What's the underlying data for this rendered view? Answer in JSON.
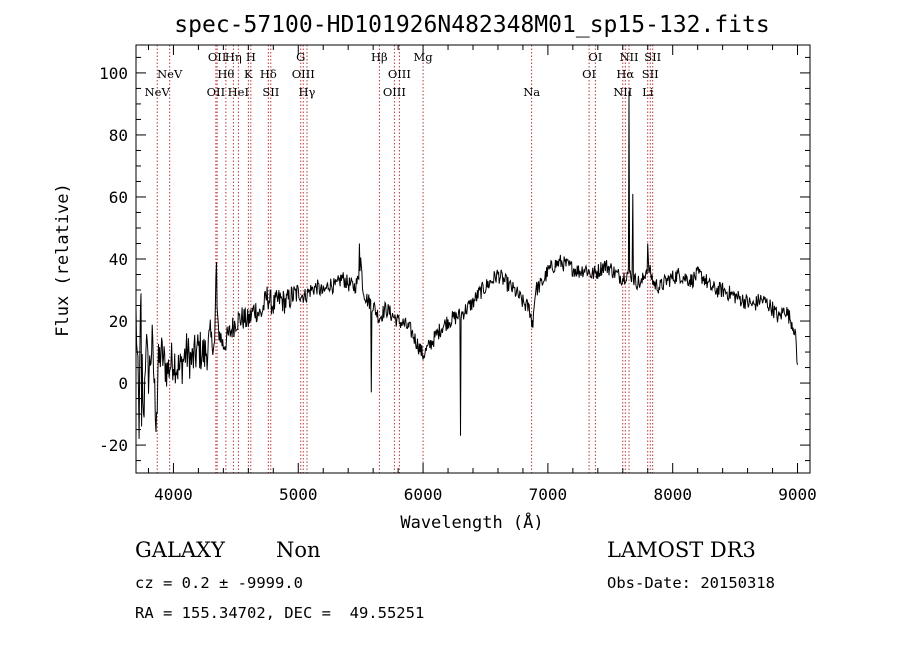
{
  "chart_data": {
    "type": "line",
    "title": "spec-57100-HD101926N482348M01_sp15-132.fits",
    "xlabel": "Wavelength (Å)",
    "ylabel": "Flux (relative)",
    "xlim": [
      3700,
      9100
    ],
    "ylim": [
      -29,
      109
    ],
    "xticks": [
      4000,
      5000,
      6000,
      7000,
      8000,
      9000
    ],
    "yticks": [
      -20,
      0,
      20,
      40,
      60,
      80,
      100
    ],
    "spectrum_anchors": [
      [
        3700,
        22
      ],
      [
        3720,
        -5
      ],
      [
        3740,
        26
      ],
      [
        3760,
        -14
      ],
      [
        3780,
        15
      ],
      [
        3800,
        2
      ],
      [
        3830,
        13
      ],
      [
        3860,
        -11
      ],
      [
        3880,
        6
      ],
      [
        3900,
        10
      ],
      [
        3950,
        4
      ],
      [
        4000,
        8
      ],
      [
        4050,
        4
      ],
      [
        4100,
        10
      ],
      [
        4150,
        7
      ],
      [
        4200,
        11
      ],
      [
        4250,
        9
      ],
      [
        4300,
        14
      ],
      [
        4330,
        12
      ],
      [
        4340,
        33
      ],
      [
        4355,
        18
      ],
      [
        4400,
        12
      ],
      [
        4450,
        16
      ],
      [
        4500,
        20
      ],
      [
        4550,
        21
      ],
      [
        4600,
        20
      ],
      [
        4650,
        24
      ],
      [
        4700,
        22
      ],
      [
        4750,
        28
      ],
      [
        4800,
        25
      ],
      [
        4850,
        27
      ],
      [
        4900,
        26
      ],
      [
        4950,
        28
      ],
      [
        5000,
        29
      ],
      [
        5050,
        28
      ],
      [
        5100,
        30
      ],
      [
        5150,
        31
      ],
      [
        5200,
        29
      ],
      [
        5250,
        32
      ],
      [
        5300,
        31
      ],
      [
        5350,
        34
      ],
      [
        5400,
        32
      ],
      [
        5450,
        31
      ],
      [
        5480,
        33
      ],
      [
        5500,
        40
      ],
      [
        5520,
        30
      ],
      [
        5550,
        27
      ],
      [
        5600,
        25
      ],
      [
        5650,
        21
      ],
      [
        5700,
        24
      ],
      [
        5750,
        22
      ],
      [
        5800,
        20
      ],
      [
        5850,
        19
      ],
      [
        5900,
        17
      ],
      [
        5950,
        13
      ],
      [
        6000,
        9
      ],
      [
        6050,
        12
      ],
      [
        6100,
        15
      ],
      [
        6150,
        18
      ],
      [
        6200,
        20
      ],
      [
        6250,
        21
      ],
      [
        6300,
        22
      ],
      [
        6350,
        24
      ],
      [
        6400,
        26
      ],
      [
        6450,
        29
      ],
      [
        6500,
        31
      ],
      [
        6550,
        33
      ],
      [
        6600,
        35
      ],
      [
        6650,
        33
      ],
      [
        6700,
        31
      ],
      [
        6750,
        29
      ],
      [
        6800,
        26
      ],
      [
        6850,
        24
      ],
      [
        6880,
        20
      ],
      [
        6900,
        30
      ],
      [
        6950,
        32
      ],
      [
        7000,
        36
      ],
      [
        7050,
        38
      ],
      [
        7100,
        39
      ],
      [
        7150,
        38
      ],
      [
        7200,
        37
      ],
      [
        7250,
        36
      ],
      [
        7300,
        37
      ],
      [
        7350,
        35
      ],
      [
        7400,
        36
      ],
      [
        7450,
        38
      ],
      [
        7500,
        37
      ],
      [
        7550,
        35
      ],
      [
        7600,
        34
      ],
      [
        7650,
        36
      ],
      [
        7700,
        33
      ],
      [
        7750,
        32
      ],
      [
        7800,
        38
      ],
      [
        7850,
        32
      ],
      [
        7900,
        31
      ],
      [
        7950,
        33
      ],
      [
        8000,
        34
      ],
      [
        8050,
        35
      ],
      [
        8100,
        34
      ],
      [
        8150,
        33
      ],
      [
        8200,
        35
      ],
      [
        8250,
        34
      ],
      [
        8300,
        31
      ],
      [
        8350,
        30
      ],
      [
        8400,
        30
      ],
      [
        8450,
        29
      ],
      [
        8500,
        28
      ],
      [
        8550,
        27
      ],
      [
        8600,
        26
      ],
      [
        8650,
        25
      ],
      [
        8700,
        27
      ],
      [
        8750,
        26
      ],
      [
        8800,
        24
      ],
      [
        8850,
        21
      ],
      [
        8900,
        24
      ],
      [
        8950,
        20
      ],
      [
        8980,
        17
      ],
      [
        9000,
        5
      ]
    ],
    "spikes": [
      [
        3725,
        -18
      ],
      [
        3745,
        -14
      ],
      [
        3870,
        -10
      ],
      [
        4345,
        39
      ],
      [
        5490,
        45
      ],
      [
        5585,
        -3
      ],
      [
        6300,
        -17
      ],
      [
        6870,
        18
      ],
      [
        7650,
        94
      ],
      [
        7680,
        61
      ],
      [
        7800,
        45
      ]
    ],
    "reference_lines": [
      {
        "x": 3870,
        "label": "NeV",
        "row": 3
      },
      {
        "x": 3970,
        "label": "NeV",
        "row": 2
      },
      {
        "x": 4340,
        "label": "OII",
        "row": 3
      },
      {
        "x": 4350,
        "label": "OII",
        "row": 1
      },
      {
        "x": 4420,
        "label": "Hθ",
        "row": 2
      },
      {
        "x": 4480,
        "label": "Hη",
        "row": 1
      },
      {
        "x": 4520,
        "label": "HeI",
        "row": 3
      },
      {
        "x": 4600,
        "label": "K",
        "row": 2
      },
      {
        "x": 4620,
        "label": "H",
        "row": 1
      },
      {
        "x": 4760,
        "label": "Hδ",
        "row": 2
      },
      {
        "x": 4780,
        "label": "SII",
        "row": 3
      },
      {
        "x": 5020,
        "label": "G",
        "row": 1
      },
      {
        "x": 5040,
        "label": "OIII",
        "row": 2
      },
      {
        "x": 5070,
        "label": "Hγ",
        "row": 3
      },
      {
        "x": 5650,
        "label": "Hβ",
        "row": 1
      },
      {
        "x": 5770,
        "label": "OIII",
        "row": 3
      },
      {
        "x": 5810,
        "label": "OIII",
        "row": 2
      },
      {
        "x": 6000,
        "label": "Mg",
        "row": 1
      },
      {
        "x": 6870,
        "label": "Na",
        "row": 3
      },
      {
        "x": 7330,
        "label": "OI",
        "row": 2
      },
      {
        "x": 7380,
        "label": "OI",
        "row": 1
      },
      {
        "x": 7600,
        "label": "NII",
        "row": 3
      },
      {
        "x": 7620,
        "label": "Hα",
        "row": 2
      },
      {
        "x": 7650,
        "label": "NII",
        "row": 1
      },
      {
        "x": 7800,
        "label": "Li",
        "row": 3
      },
      {
        "x": 7820,
        "label": "SII",
        "row": 2
      },
      {
        "x": 7840,
        "label": "SII",
        "row": 1
      }
    ]
  },
  "info": {
    "object_class": "GALAXY",
    "subclass": "Non",
    "survey": "LAMOST DR3",
    "cz": "cz = 0.2 ± -9999.0",
    "obs_date": "Obs-Date: 20150318",
    "coords": "RA = 155.34702, DEC =  49.55251"
  },
  "colors": {
    "spectrum": "#000000",
    "reference_line": "#b22222",
    "axes": "#000000"
  }
}
